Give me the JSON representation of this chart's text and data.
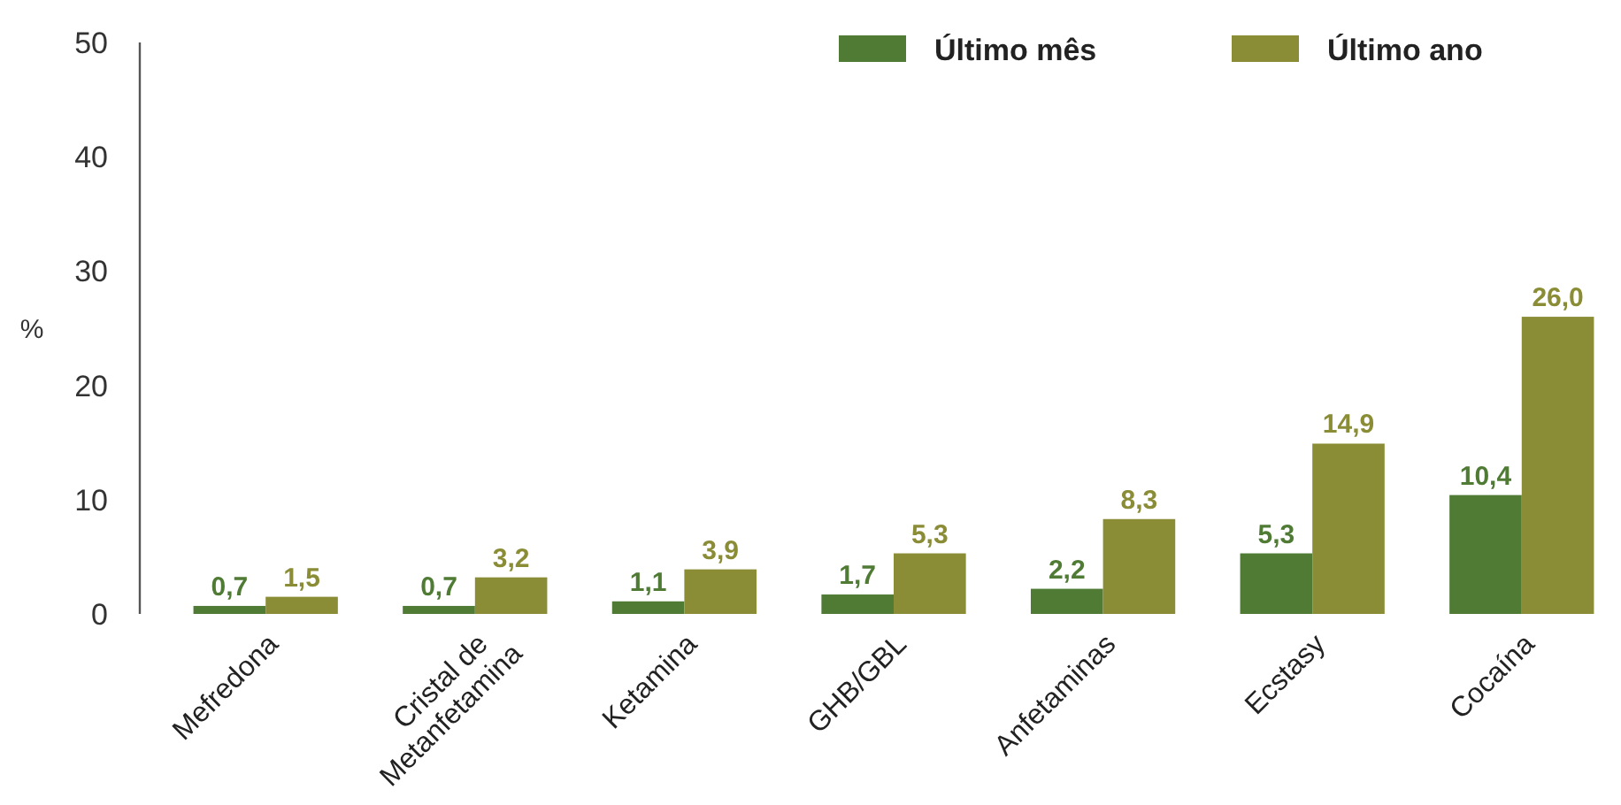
{
  "chart_data": {
    "type": "bar",
    "ylabel": "%",
    "categories": [
      "Mefredona",
      "Cristal de Metanfetamina",
      "Ketamina",
      "GHB/GBL",
      "Anfetaminas",
      "Ecstasy",
      "Cocaína"
    ],
    "series": [
      {
        "name": "Último mês",
        "color": "#4f7b35",
        "values": [
          0.7,
          0.7,
          1.1,
          1.7,
          2.2,
          5.3,
          10.4
        ],
        "value_labels": [
          "0,7",
          "0,7",
          "1,1",
          "1,7",
          "2,2",
          "5,3",
          "10,4"
        ]
      },
      {
        "name": "Último ano",
        "color": "#8a8d36",
        "values": [
          1.5,
          3.2,
          3.9,
          5.3,
          8.3,
          14.9,
          26.0
        ],
        "value_labels": [
          "1,5",
          "3,2",
          "3,9",
          "5,3",
          "8,3",
          "14,9",
          "26,0"
        ]
      }
    ],
    "ylim": [
      0,
      50
    ],
    "yticks": [
      0,
      10,
      20,
      30,
      40,
      50
    ],
    "grid": false,
    "legend": "top right"
  }
}
